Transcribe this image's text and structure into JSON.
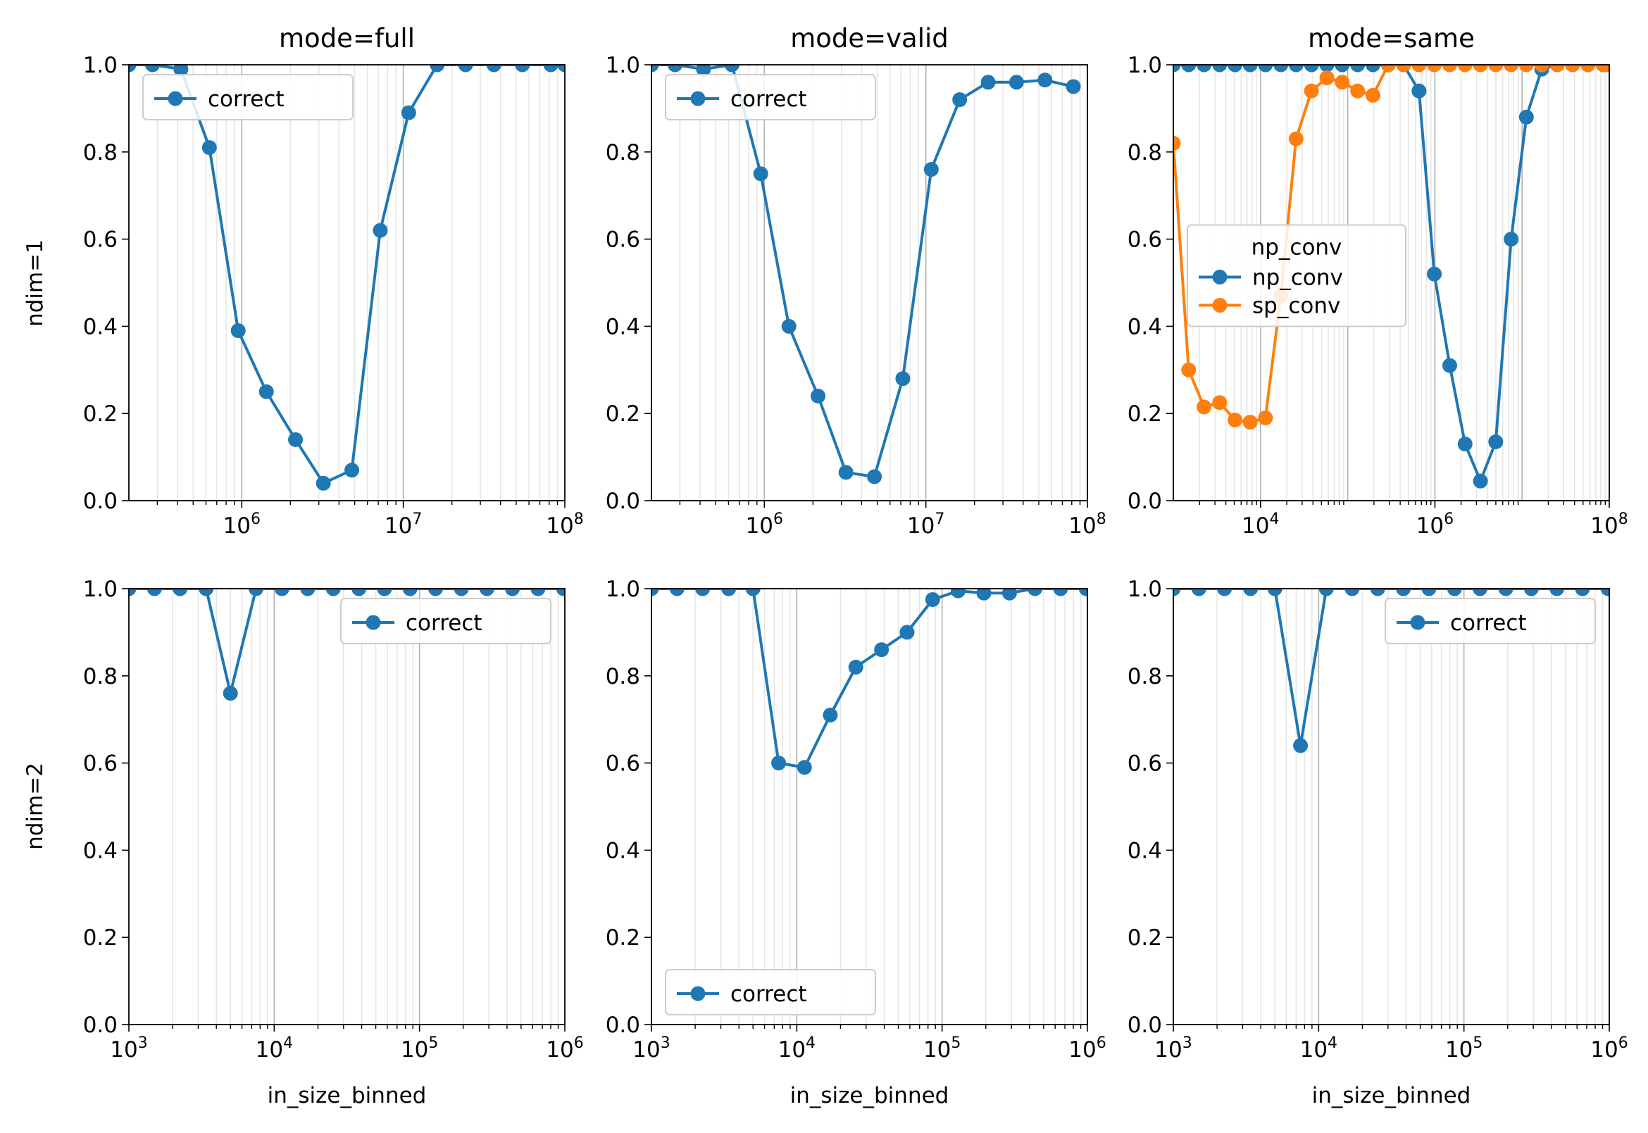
{
  "figure": {
    "row_labels": [
      "ndim=1",
      "ndim=2"
    ],
    "col_titles": [
      "mode=full",
      "mode=valid",
      "mode=same"
    ],
    "xlabel": "in_size_binned"
  },
  "colors": {
    "np_conv": "#1f77b4",
    "sp_conv": "#ff7f0e",
    "grid_major": "#b0b0b0",
    "grid_minor": "#e6e6e6"
  },
  "chart_data": [
    {
      "type": "line",
      "row": 0,
      "col": 0,
      "title": "mode=full",
      "ylabel": "ndim=1",
      "xlabel": "",
      "xscale": "log",
      "xlim": [
        200000,
        100000000
      ],
      "ylim": [
        0,
        1
      ],
      "xticks": [
        1000000,
        10000000,
        100000000
      ],
      "xtick_exponents": [
        "6",
        "7",
        "8"
      ],
      "yticks": [
        "0.0",
        "0.2",
        "0.4",
        "0.6",
        "0.8",
        "1.0"
      ],
      "grid": "x",
      "legend": {
        "loc": "upper-left",
        "title": "",
        "labels": [
          "correct"
        ]
      },
      "series": [
        {
          "key": "np_conv",
          "name": "correct",
          "x": [
            200000,
            280000,
            420000,
            630000,
            950000,
            1420000,
            2150000,
            3200000,
            4800000,
            7200000,
            10800000,
            16200000,
            24300000,
            36400000,
            54600000,
            81900000,
            100000000
          ],
          "y": [
            1.0,
            1.0,
            0.99,
            0.81,
            0.39,
            0.25,
            0.14,
            0.04,
            0.07,
            0.62,
            0.89,
            1.0,
            1.0,
            1.0,
            1.0,
            1.0,
            1.0
          ]
        }
      ]
    },
    {
      "type": "line",
      "row": 0,
      "col": 1,
      "title": "mode=valid",
      "ylabel": "",
      "xlabel": "",
      "xscale": "log",
      "xlim": [
        200000,
        100000000
      ],
      "ylim": [
        0,
        1
      ],
      "xticks": [
        1000000,
        10000000,
        100000000
      ],
      "xtick_exponents": [
        "6",
        "7",
        "8"
      ],
      "yticks": [
        "0.0",
        "0.2",
        "0.4",
        "0.6",
        "0.8",
        "1.0"
      ],
      "grid": "x",
      "legend": {
        "loc": "upper-left",
        "title": "",
        "labels": [
          "correct"
        ]
      },
      "series": [
        {
          "key": "np_conv",
          "name": "correct",
          "x": [
            200000,
            280000,
            420000,
            630000,
            950000,
            1420000,
            2150000,
            3200000,
            4800000,
            7200000,
            10800000,
            16200000,
            24300000,
            36400000,
            54600000,
            81900000
          ],
          "y": [
            1.0,
            1.0,
            0.99,
            1.0,
            0.75,
            0.4,
            0.24,
            0.065,
            0.055,
            0.28,
            0.76,
            0.92,
            0.96,
            0.96,
            0.965,
            0.95
          ]
        }
      ]
    },
    {
      "type": "line",
      "row": 0,
      "col": 2,
      "title": "mode=same",
      "ylabel": "",
      "xlabel": "",
      "xscale": "log",
      "xlim": [
        1000,
        100000000
      ],
      "ylim": [
        0,
        1
      ],
      "xticks": [
        10000,
        1000000,
        100000000
      ],
      "xtick_exponents": [
        "4",
        "6",
        "8"
      ],
      "yticks": [
        "0.0",
        "0.2",
        "0.4",
        "0.6",
        "0.8",
        "1.0"
      ],
      "grid": "x",
      "legend": {
        "loc": "center-left",
        "title": "np_conv",
        "labels": [
          "np_conv",
          "sp_conv"
        ]
      },
      "series": [
        {
          "key": "np_conv",
          "name": "np_conv",
          "x": [
            1000,
            1500,
            2250,
            3400,
            5100,
            7600,
            11400,
            17100,
            25600,
            38400,
            57700,
            86500,
            130000,
            195000,
            292000,
            438000,
            657000,
            985000,
            1480000,
            2220000,
            3330000,
            4990000,
            7490000,
            11200000,
            16800000,
            25300000,
            37900000,
            56900000,
            85300000,
            100000000
          ],
          "y": [
            1.0,
            1.0,
            1.0,
            1.0,
            1.0,
            1.0,
            1.0,
            1.0,
            1.0,
            1.0,
            1.0,
            1.0,
            1.0,
            1.0,
            1.0,
            1.0,
            0.94,
            0.52,
            0.31,
            0.13,
            0.045,
            0.135,
            0.6,
            0.88,
            0.99,
            1.0,
            1.0,
            1.0,
            1.0,
            1.0
          ]
        },
        {
          "key": "sp_conv",
          "name": "sp_conv",
          "x": [
            1000,
            1500,
            2250,
            3400,
            5100,
            7600,
            11400,
            17100,
            25600,
            38400,
            57700,
            86500,
            130000,
            195000,
            292000,
            438000,
            657000,
            985000,
            1480000,
            2220000,
            3330000,
            4990000,
            7490000,
            11200000,
            16800000,
            25300000,
            37900000,
            56900000,
            85300000,
            100000000
          ],
          "y": [
            0.82,
            0.3,
            0.215,
            0.225,
            0.185,
            0.18,
            0.19,
            0.47,
            0.83,
            0.94,
            0.97,
            0.96,
            0.94,
            0.93,
            1.0,
            1.0,
            1.0,
            1.0,
            1.0,
            1.0,
            1.0,
            1.0,
            1.0,
            1.0,
            1.0,
            1.0,
            1.0,
            1.0,
            1.0,
            1.0
          ]
        }
      ]
    },
    {
      "type": "line",
      "row": 1,
      "col": 0,
      "title": "",
      "ylabel": "ndim=2",
      "xlabel": "in_size_binned",
      "xscale": "log",
      "xlim": [
        1000,
        1000000
      ],
      "ylim": [
        0,
        1
      ],
      "xticks": [
        1000,
        10000,
        100000,
        1000000
      ],
      "xtick_exponents": [
        "3",
        "4",
        "5",
        "6"
      ],
      "yticks": [
        "0.0",
        "0.2",
        "0.4",
        "0.6",
        "0.8",
        "1.0"
      ],
      "grid": "x",
      "legend": {
        "loc": "upper-right",
        "title": "",
        "labels": [
          "correct"
        ]
      },
      "series": [
        {
          "key": "np_conv",
          "name": "correct",
          "x": [
            1000,
            1500,
            2250,
            3400,
            5000,
            7500,
            11300,
            17000,
            25500,
            38300,
            57400,
            86100,
            129000,
            194000,
            291000,
            436000,
            654000,
            981000
          ],
          "y": [
            1.0,
            1.0,
            1.0,
            1.0,
            0.76,
            1.0,
            1.0,
            1.0,
            1.0,
            1.0,
            1.0,
            1.0,
            1.0,
            1.0,
            1.0,
            1.0,
            1.0,
            1.0
          ]
        }
      ]
    },
    {
      "type": "line",
      "row": 1,
      "col": 1,
      "title": "",
      "ylabel": "",
      "xlabel": "in_size_binned",
      "xscale": "log",
      "xlim": [
        1000,
        1000000
      ],
      "ylim": [
        0,
        1
      ],
      "xticks": [
        1000,
        10000,
        100000,
        1000000
      ],
      "xtick_exponents": [
        "3",
        "4",
        "5",
        "6"
      ],
      "yticks": [
        "0.0",
        "0.2",
        "0.4",
        "0.6",
        "0.8",
        "1.0"
      ],
      "grid": "x",
      "legend": {
        "loc": "lower-left",
        "title": "",
        "labels": [
          "correct"
        ]
      },
      "series": [
        {
          "key": "np_conv",
          "name": "correct",
          "x": [
            1000,
            1500,
            2250,
            3400,
            5000,
            7500,
            11300,
            17000,
            25500,
            38300,
            57400,
            86100,
            129000,
            194000,
            291000,
            436000,
            654000,
            981000
          ],
          "y": [
            1.0,
            1.0,
            1.0,
            1.0,
            1.0,
            0.6,
            0.59,
            0.71,
            0.82,
            0.86,
            0.9,
            0.975,
            0.995,
            0.99,
            0.99,
            1.0,
            1.0,
            1.0
          ]
        }
      ]
    },
    {
      "type": "line",
      "row": 1,
      "col": 2,
      "title": "",
      "ylabel": "",
      "xlabel": "in_size_binned",
      "xscale": "log",
      "xlim": [
        1000,
        1000000
      ],
      "ylim": [
        0,
        1
      ],
      "xticks": [
        1000,
        10000,
        100000,
        1000000
      ],
      "xtick_exponents": [
        "3",
        "4",
        "5",
        "6"
      ],
      "yticks": [
        "0.0",
        "0.2",
        "0.4",
        "0.6",
        "0.8",
        "1.0"
      ],
      "grid": "x",
      "legend": {
        "loc": "upper-right",
        "title": "",
        "labels": [
          "correct"
        ]
      },
      "series": [
        {
          "key": "np_conv",
          "name": "correct",
          "x": [
            1000,
            1500,
            2250,
            3400,
            5000,
            7500,
            11300,
            17000,
            25500,
            38300,
            57400,
            86100,
            129000,
            194000,
            291000,
            436000,
            654000,
            981000
          ],
          "y": [
            1.0,
            1.0,
            1.0,
            1.0,
            1.0,
            0.64,
            1.0,
            1.0,
            1.0,
            1.0,
            1.0,
            1.0,
            1.0,
            1.0,
            1.0,
            1.0,
            1.0,
            1.0
          ]
        }
      ]
    }
  ]
}
